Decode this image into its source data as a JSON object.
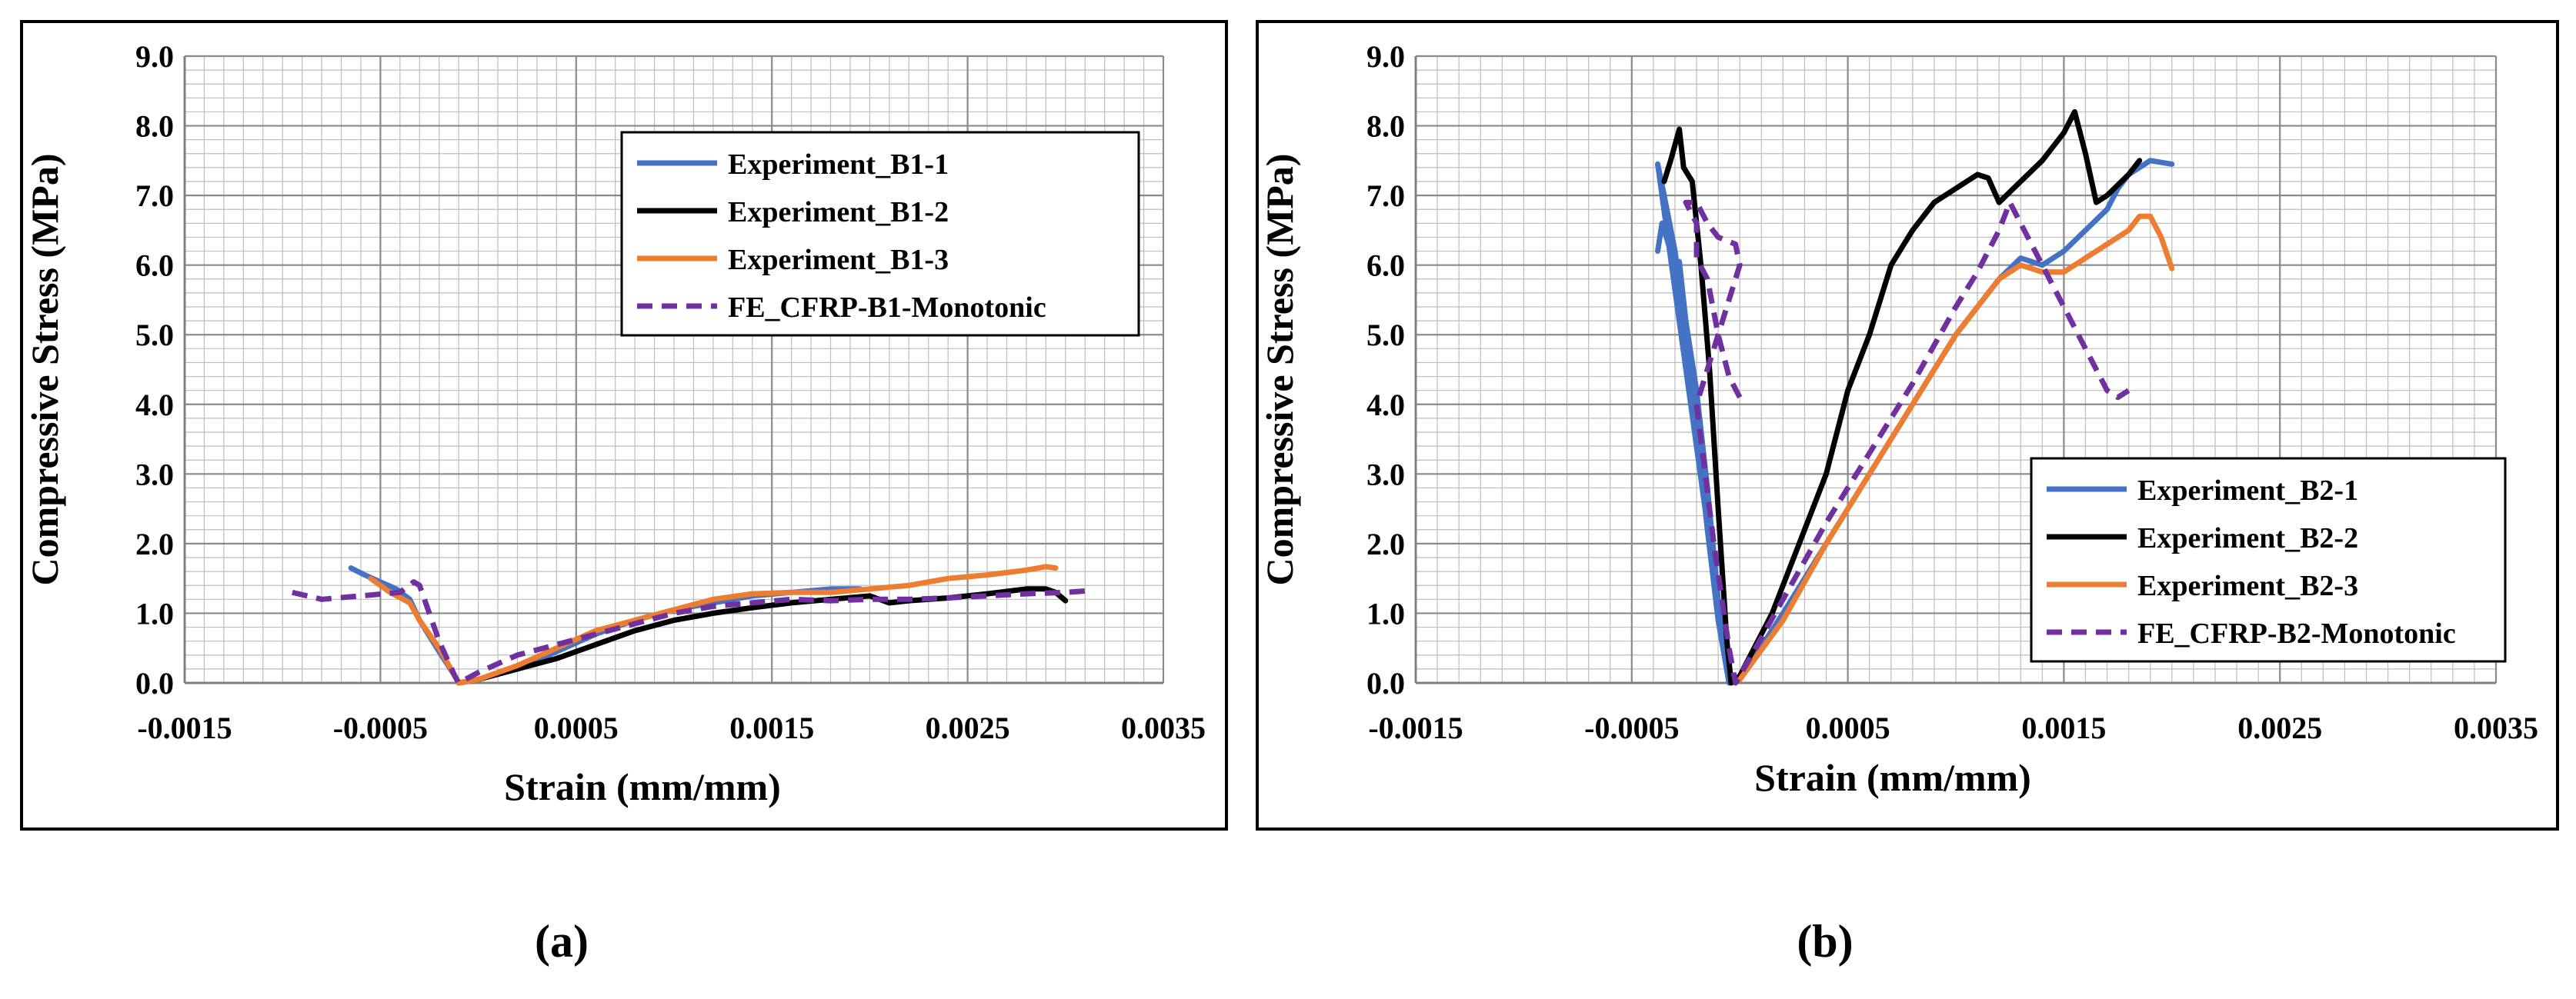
{
  "figure_labels": {
    "a": "(a)",
    "b": "(b)"
  },
  "chart_data": [
    {
      "type": "line",
      "title": "",
      "xlabel": "Strain (mm/mm)",
      "ylabel": "Compressive Stress (MPa)",
      "xlim": [
        -0.0015,
        0.0035
      ],
      "ylim": [
        0,
        9
      ],
      "x_ticks": [
        -0.0015,
        -0.0005,
        0.0005,
        0.0015,
        0.0025,
        0.0035
      ],
      "x_tick_labels": [
        "-0.0015",
        "-0.0005",
        "0.0005",
        "0.0015",
        "0.0025",
        "0.0035"
      ],
      "y_ticks": [
        0,
        1,
        2,
        3,
        4,
        5,
        6,
        7,
        8,
        9
      ],
      "y_tick_labels": [
        "0.0",
        "1.0",
        "2.0",
        "3.0",
        "4.0",
        "5.0",
        "6.0",
        "7.0",
        "8.0",
        "9.0"
      ],
      "grid": true,
      "legend_position": "top-right",
      "series": [
        {
          "name": "Experiment_B1-1",
          "color": "#4472C4",
          "dash": "solid",
          "points": [
            [
              -0.00065,
              1.65
            ],
            [
              -0.00058,
              1.55
            ],
            [
              -0.0005,
              1.45
            ],
            [
              -0.00042,
              1.35
            ],
            [
              -0.00035,
              1.2
            ],
            [
              -0.0003,
              0.9
            ],
            [
              -0.0002,
              0.45
            ],
            [
              -0.00012,
              0.1
            ],
            [
              -0.0001,
              0.0
            ],
            [
              0.0,
              0.05
            ],
            [
              0.0002,
              0.2
            ],
            [
              0.0004,
              0.45
            ],
            [
              0.0006,
              0.7
            ],
            [
              0.0008,
              0.9
            ],
            [
              0.001,
              1.05
            ],
            [
              0.0012,
              1.15
            ],
            [
              0.0014,
              1.25
            ],
            [
              0.0016,
              1.3
            ],
            [
              0.0018,
              1.35
            ],
            [
              0.00195,
              1.35
            ]
          ]
        },
        {
          "name": "Experiment_B1-2",
          "color": "#000000",
          "dash": "solid",
          "points": [
            [
              -0.0001,
              0.0
            ],
            [
              0.0,
              0.05
            ],
            [
              0.0002,
              0.2
            ],
            [
              0.0004,
              0.35
            ],
            [
              0.0006,
              0.55
            ],
            [
              0.0008,
              0.75
            ],
            [
              0.001,
              0.9
            ],
            [
              0.0012,
              1.0
            ],
            [
              0.0014,
              1.08
            ],
            [
              0.0016,
              1.15
            ],
            [
              0.0018,
              1.2
            ],
            [
              0.002,
              1.25
            ],
            [
              0.0021,
              1.15
            ],
            [
              0.0022,
              1.18
            ],
            [
              0.0024,
              1.22
            ],
            [
              0.0026,
              1.28
            ],
            [
              0.0028,
              1.35
            ],
            [
              0.0029,
              1.35
            ],
            [
              0.00295,
              1.3
            ],
            [
              0.003,
              1.18
            ]
          ]
        },
        {
          "name": "Experiment_B1-3",
          "color": "#ED7D31",
          "dash": "solid",
          "points": [
            [
              -0.00055,
              1.5
            ],
            [
              -0.0005,
              1.4
            ],
            [
              -0.00045,
              1.3
            ],
            [
              -0.00035,
              1.15
            ],
            [
              -0.0003,
              0.9
            ],
            [
              -0.0002,
              0.5
            ],
            [
              -0.00012,
              0.1
            ],
            [
              -0.0001,
              0.0
            ],
            [
              0.0,
              0.05
            ],
            [
              0.0002,
              0.25
            ],
            [
              0.0004,
              0.5
            ],
            [
              0.0006,
              0.75
            ],
            [
              0.0008,
              0.9
            ],
            [
              0.001,
              1.05
            ],
            [
              0.0012,
              1.2
            ],
            [
              0.0014,
              1.28
            ],
            [
              0.0016,
              1.3
            ],
            [
              0.0018,
              1.3
            ],
            [
              0.002,
              1.35
            ],
            [
              0.0022,
              1.4
            ],
            [
              0.0024,
              1.5
            ],
            [
              0.0026,
              1.55
            ],
            [
              0.0028,
              1.62
            ],
            [
              0.0029,
              1.67
            ],
            [
              0.00295,
              1.65
            ]
          ]
        },
        {
          "name": "FE_CFRP-B1-Monotonic",
          "color": "#7030A0",
          "dash": "dashed",
          "points": [
            [
              -0.00095,
              1.3
            ],
            [
              -0.0008,
              1.2
            ],
            [
              -0.0006,
              1.25
            ],
            [
              -0.0004,
              1.3
            ],
            [
              -0.00033,
              1.45
            ],
            [
              -0.0003,
              1.4
            ],
            [
              -0.0002,
              0.6
            ],
            [
              -0.00012,
              0.1
            ],
            [
              -0.0001,
              0.0
            ],
            [
              0.0,
              0.15
            ],
            [
              0.0002,
              0.4
            ],
            [
              0.0004,
              0.55
            ],
            [
              0.0006,
              0.7
            ],
            [
              0.0008,
              0.85
            ],
            [
              0.001,
              1.0
            ],
            [
              0.0012,
              1.1
            ],
            [
              0.0014,
              1.15
            ],
            [
              0.0016,
              1.2
            ],
            [
              0.0018,
              1.18
            ],
            [
              0.002,
              1.2
            ],
            [
              0.0022,
              1.2
            ],
            [
              0.0024,
              1.22
            ],
            [
              0.0026,
              1.25
            ],
            [
              0.0028,
              1.28
            ],
            [
              0.003,
              1.3
            ],
            [
              0.0031,
              1.32
            ]
          ]
        }
      ]
    },
    {
      "type": "line",
      "title": "",
      "xlabel": "Strain (mm/mm)",
      "ylabel": "Compressive Stress (MPa)",
      "xlim": [
        -0.0015,
        0.0035
      ],
      "ylim": [
        0,
        9
      ],
      "x_ticks": [
        -0.0015,
        -0.0005,
        0.0005,
        0.0015,
        0.0025,
        0.0035
      ],
      "x_tick_labels": [
        "-0.0015",
        "-0.0005",
        "0.0005",
        "0.0015",
        "0.0025",
        "0.0035"
      ],
      "y_ticks": [
        0,
        1,
        2,
        3,
        4,
        5,
        6,
        7,
        8,
        9
      ],
      "y_tick_labels": [
        "0.0",
        "1.0",
        "2.0",
        "3.0",
        "4.0",
        "5.0",
        "6.0",
        "7.0",
        "8.0",
        "9.0"
      ],
      "grid": true,
      "legend_position": "bottom-right",
      "series": [
        {
          "name": "Experiment_B2-1",
          "color": "#4472C4",
          "dash": "solid",
          "points": [
            [
              -0.00038,
              6.2
            ],
            [
              -0.00036,
              6.6
            ],
            [
              -0.00033,
              6.3
            ],
            [
              -0.0003,
              5.95
            ],
            [
              -0.00028,
              6.05
            ],
            [
              -0.00025,
              5.2
            ],
            [
              -0.0002,
              4.2
            ],
            [
              -0.00015,
              2.8
            ],
            [
              -0.0001,
              1.2
            ],
            [
              -5e-05,
              0.0
            ],
            [
              -0.00038,
              7.45
            ],
            [
              -0.00035,
              7.0
            ],
            [
              -0.0003,
              6.2
            ],
            [
              -0.00025,
              5.0
            ],
            [
              -0.0002,
              3.6
            ],
            [
              -0.00015,
              2.2
            ],
            [
              -0.0001,
              0.9
            ],
            [
              -5e-05,
              0.0
            ],
            [
              0.0,
              0.05
            ],
            [
              0.0002,
              1.0
            ],
            [
              0.0004,
              2.0
            ],
            [
              0.0006,
              3.0
            ],
            [
              0.0008,
              4.0
            ],
            [
              0.001,
              5.0
            ],
            [
              0.0012,
              5.8
            ],
            [
              0.0013,
              6.1
            ],
            [
              0.0014,
              6.0
            ],
            [
              0.0015,
              6.2
            ],
            [
              0.0016,
              6.5
            ],
            [
              0.0017,
              6.8
            ],
            [
              0.00175,
              7.1
            ],
            [
              0.0018,
              7.3
            ],
            [
              0.0019,
              7.5
            ],
            [
              0.002,
              7.45
            ]
          ]
        },
        {
          "name": "Experiment_B2-2",
          "color": "#000000",
          "dash": "solid",
          "points": [
            [
              -0.00035,
              7.2
            ],
            [
              -0.00032,
              7.5
            ],
            [
              -0.00028,
              7.95
            ],
            [
              -0.00026,
              7.4
            ],
            [
              -0.00022,
              7.2
            ],
            [
              -0.00018,
              6.0
            ],
            [
              -0.00014,
              4.5
            ],
            [
              -0.0001,
              2.5
            ],
            [
              -6e-05,
              0.6
            ],
            [
              -4e-05,
              0.0
            ],
            [
              0.0,
              0.1
            ],
            [
              0.00015,
              1.0
            ],
            [
              0.0003,
              2.2
            ],
            [
              0.0004,
              3.0
            ],
            [
              0.0005,
              4.2
            ],
            [
              0.0006,
              5.0
            ],
            [
              0.0007,
              6.0
            ],
            [
              0.0008,
              6.5
            ],
            [
              0.0009,
              6.9
            ],
            [
              0.001,
              7.1
            ],
            [
              0.0011,
              7.3
            ],
            [
              0.00115,
              7.25
            ],
            [
              0.0012,
              6.9
            ],
            [
              0.0013,
              7.2
            ],
            [
              0.0014,
              7.5
            ],
            [
              0.0015,
              7.9
            ],
            [
              0.00155,
              8.2
            ],
            [
              0.0016,
              7.6
            ],
            [
              0.00165,
              6.9
            ],
            [
              0.0017,
              7.0
            ],
            [
              0.0018,
              7.3
            ],
            [
              0.00185,
              7.5
            ]
          ]
        },
        {
          "name": "Experiment_B2-3",
          "color": "#ED7D31",
          "dash": "solid",
          "points": [
            [
              0.0,
              0.05
            ],
            [
              0.0002,
              0.9
            ],
            [
              0.0004,
              2.0
            ],
            [
              0.0006,
              3.0
            ],
            [
              0.0008,
              4.0
            ],
            [
              0.001,
              5.0
            ],
            [
              0.0012,
              5.8
            ],
            [
              0.0013,
              6.0
            ],
            [
              0.0014,
              5.9
            ],
            [
              0.0015,
              5.9
            ],
            [
              0.0016,
              6.1
            ],
            [
              0.0017,
              6.3
            ],
            [
              0.0018,
              6.5
            ],
            [
              0.00185,
              6.7
            ],
            [
              0.0019,
              6.7
            ],
            [
              0.00195,
              6.4
            ],
            [
              0.002,
              5.95
            ]
          ]
        },
        {
          "name": "FE_CFRP-B2-Monotonic",
          "color": "#7030A0",
          "dash": "dashed",
          "points": [
            [
              0.0,
              4.1
            ],
            [
              -5e-05,
              4.4
            ],
            [
              -0.0001,
              5.0
            ],
            [
              -0.00015,
              5.8
            ],
            [
              -0.0002,
              6.1
            ],
            [
              -0.0002,
              6.6
            ],
            [
              -0.00025,
              6.9
            ],
            [
              -0.0002,
              6.9
            ],
            [
              -0.00015,
              6.6
            ],
            [
              -0.0001,
              6.4
            ],
            [
              -2e-05,
              6.3
            ],
            [
              0.0,
              6.0
            ],
            [
              -0.0002,
              4.0
            ],
            [
              -0.00012,
              2.0
            ],
            [
              -5e-05,
              0.5
            ],
            [
              -2e-05,
              0.0
            ],
            [
              0.0,
              0.1
            ],
            [
              0.0002,
              1.2
            ],
            [
              0.0004,
              2.3
            ],
            [
              0.0006,
              3.3
            ],
            [
              0.0008,
              4.3
            ],
            [
              0.001,
              5.4
            ],
            [
              0.0011,
              5.9
            ],
            [
              0.0012,
              6.5
            ],
            [
              0.00125,
              6.9
            ],
            [
              0.0013,
              6.6
            ],
            [
              0.0014,
              6.0
            ],
            [
              0.0015,
              5.4
            ],
            [
              0.0016,
              4.8
            ],
            [
              0.0017,
              4.2
            ],
            [
              0.00175,
              4.1
            ],
            [
              0.0018,
              4.2
            ]
          ]
        }
      ]
    }
  ]
}
